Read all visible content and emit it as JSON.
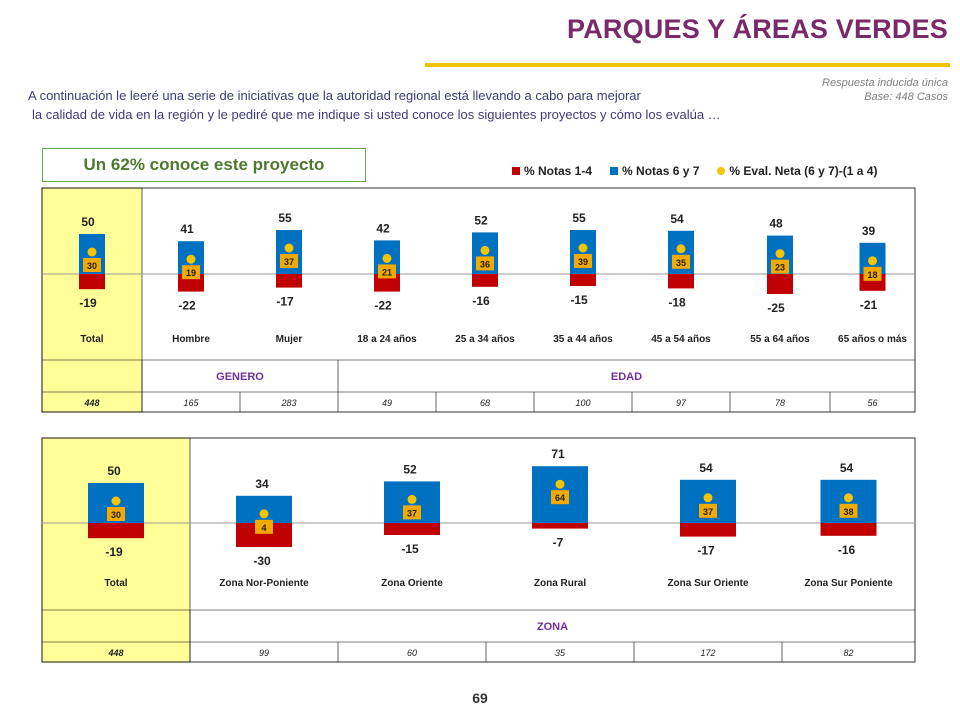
{
  "header": {
    "title": "PARQUES Y ÁREAS VERDES",
    "meta_line1": "Respuesta inducida única",
    "meta_line2": "Base: 448 Casos",
    "intro_line1": "A continuación le leeré una serie de iniciativas que la autoridad regional está llevando a cabo para mejorar",
    "intro_line2": "la calidad de vida en la región y le pediré que me indique si usted conoce los siguientes proyectos y cómo los evalúa …",
    "callout": "Un 62% conoce este proyecto"
  },
  "legend": {
    "items": [
      "% Notas 1-4",
      "% Notas 6 y 7",
      "% Eval. Neta (6 y 7)-(1 a 4)"
    ]
  },
  "colors": {
    "red": "#c00000",
    "blue": "#0070c0",
    "yellow": "#f5c400",
    "label_box": "#f2a900",
    "highlight": "#ffff99",
    "accent": "#7030a0"
  },
  "chart_data": [
    {
      "type": "bar",
      "categories": [
        "Total",
        "Hombre",
        "Mujer",
        "18 a 24 años",
        "25 a 34 años",
        "35 a 44 años",
        "45 a 54 años",
        "55 a 64 años",
        "65 años o más"
      ],
      "series": [
        {
          "name": "% Notas 1-4",
          "values": [
            -19,
            -22,
            -17,
            -22,
            -16,
            -15,
            -18,
            -25,
            -21
          ]
        },
        {
          "name": "% Notas 6 y 7",
          "values": [
            50,
            41,
            55,
            42,
            52,
            55,
            54,
            48,
            39
          ]
        },
        {
          "name": "% Eval. Neta (6 y 7)-(1 a 4)",
          "values": [
            30,
            19,
            37,
            21,
            36,
            39,
            35,
            23,
            18
          ]
        }
      ],
      "groups": [
        {
          "label": "GENERO",
          "categories": [
            "Hombre",
            "Mujer"
          ]
        },
        {
          "label": "EDAD",
          "categories": [
            "18 a 24 años",
            "25 a 34 años",
            "35 a 44 años",
            "45 a 54 años",
            "55 a 64 años",
            "65 años o más"
          ]
        }
      ],
      "bases": [
        "448",
        "165",
        "283",
        "49",
        "68",
        "100",
        "97",
        "78",
        "56"
      ]
    },
    {
      "type": "bar",
      "categories": [
        "Total",
        "Zona Nor-Poniente",
        "Zona Oriente",
        "Zona Rural",
        "Zona Sur Oriente",
        "Zona Sur Poniente"
      ],
      "series": [
        {
          "name": "% Notas 1-4",
          "values": [
            -19,
            -30,
            -15,
            -7,
            -17,
            -16
          ]
        },
        {
          "name": "% Notas 6 y 7",
          "values": [
            50,
            34,
            52,
            71,
            54,
            54
          ]
        },
        {
          "name": "% Eval. Neta (6 y 7)-(1 a 4)",
          "values": [
            30,
            4,
            37,
            64,
            37,
            38
          ]
        }
      ],
      "groups": [
        {
          "label": "ZONA",
          "categories": [
            "Zona Nor-Poniente",
            "Zona Oriente",
            "Zona Rural",
            "Zona Sur Oriente",
            "Zona Sur Poniente"
          ]
        }
      ],
      "bases": [
        "448",
        "99",
        "60",
        "35",
        "172",
        "82"
      ]
    }
  ],
  "footer": {
    "page": "69"
  }
}
